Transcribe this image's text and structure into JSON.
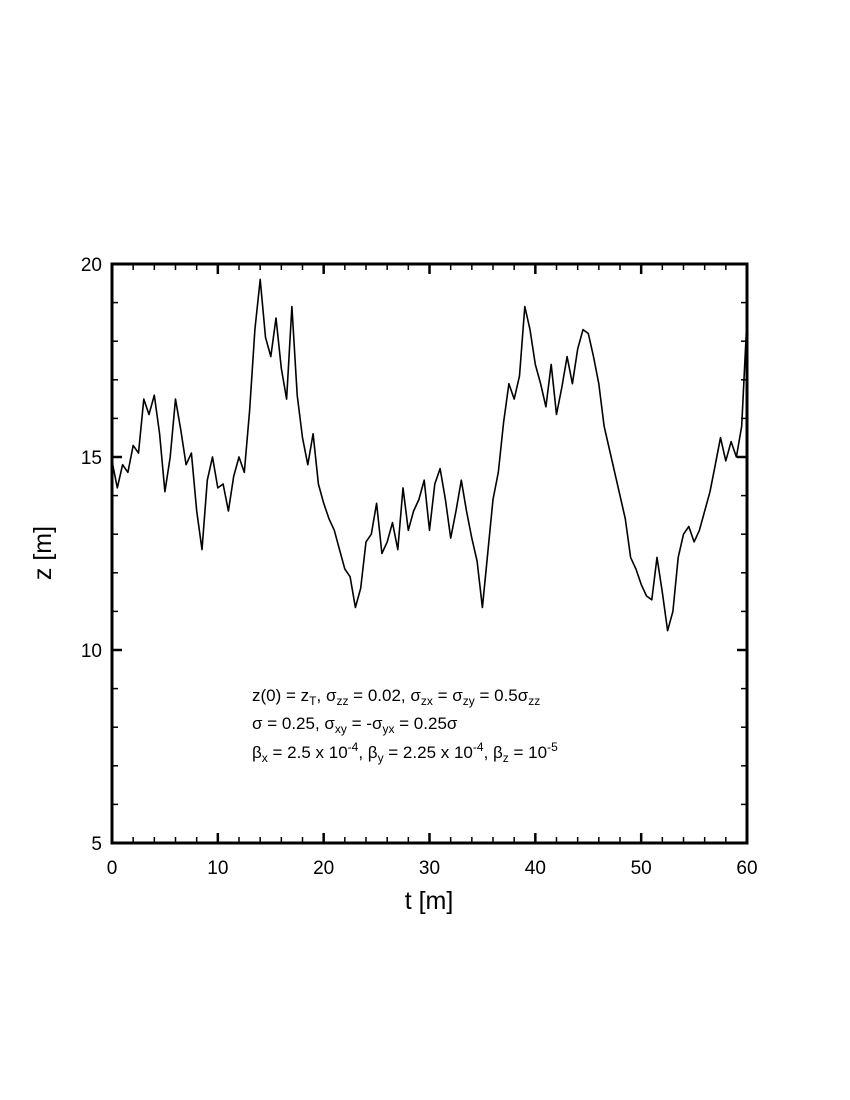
{
  "chart_data": {
    "type": "line",
    "xlabel": "t [m]",
    "ylabel": "z [m]",
    "xlim": [
      0,
      60
    ],
    "ylim": [
      5,
      20
    ],
    "x_major_ticks": [
      0,
      10,
      20,
      30,
      40,
      50,
      60
    ],
    "x_tick_labels": [
      "0",
      "10",
      "20",
      "30",
      "40",
      "50",
      "60"
    ],
    "y_major_ticks": [
      5,
      10,
      15,
      20
    ],
    "y_tick_labels": [
      "5",
      "10",
      "15",
      "20"
    ],
    "x_minor_step": 2,
    "y_minor_step": 1,
    "grid": false,
    "line_color": "#000000",
    "series": [
      {
        "x": [
          0,
          0.5,
          1.0,
          1.5,
          2.0,
          2.5,
          3.0,
          3.5,
          4.0,
          4.5,
          5.0,
          5.5,
          6.0,
          6.5,
          7.0,
          7.5,
          8.0,
          8.5,
          9.0,
          9.5,
          10.0,
          10.5,
          11.0,
          11.5,
          12.0,
          12.5,
          13.0,
          13.5,
          14.0,
          14.5,
          15.0,
          15.5,
          16.0,
          16.5,
          17.0,
          17.5,
          18.0,
          18.5,
          19.0,
          19.5,
          20.0,
          20.5,
          21.0,
          21.5,
          22.0,
          22.5,
          23.0,
          23.5,
          24.0,
          24.5,
          25.0,
          25.5,
          26.0,
          26.5,
          27.0,
          27.5,
          28.0,
          28.5,
          29.0,
          29.5,
          30.0,
          30.5,
          31.0,
          31.5,
          32.0,
          32.5,
          33.0,
          33.5,
          34.0,
          34.5,
          35.0,
          35.5,
          36.0,
          36.5,
          37.0,
          37.5,
          38.0,
          38.5,
          39.0,
          39.5,
          40.0,
          40.5,
          41.0,
          41.5,
          42.0,
          42.5,
          43.0,
          43.5,
          44.0,
          44.5,
          45.0,
          45.5,
          46.0,
          46.5,
          47.0,
          47.5,
          48.0,
          48.5,
          49.0,
          49.5,
          50.0,
          50.5,
          51.0,
          51.5,
          52.0,
          52.5,
          53.0,
          53.5,
          54.0,
          54.5,
          55.0,
          55.5,
          56.0,
          56.5,
          57.0,
          57.5,
          58.0,
          58.5,
          59.0,
          59.5,
          60.0
        ],
        "y": [
          14.9,
          14.2,
          14.8,
          14.6,
          15.3,
          15.1,
          16.5,
          16.1,
          16.6,
          15.6,
          14.1,
          15.0,
          16.5,
          15.7,
          14.8,
          15.1,
          13.6,
          12.6,
          14.4,
          15.0,
          14.2,
          14.3,
          13.6,
          14.5,
          15.0,
          14.6,
          16.2,
          18.3,
          19.6,
          18.1,
          17.6,
          18.6,
          17.3,
          16.5,
          18.9,
          16.6,
          15.5,
          14.8,
          15.6,
          14.3,
          13.8,
          13.4,
          13.1,
          12.6,
          12.1,
          11.9,
          11.1,
          11.6,
          12.8,
          13.0,
          13.8,
          12.5,
          12.8,
          13.3,
          12.6,
          14.2,
          13.1,
          13.6,
          13.9,
          14.4,
          13.1,
          14.3,
          14.7,
          13.9,
          12.9,
          13.6,
          14.4,
          13.6,
          12.9,
          12.3,
          11.1,
          12.5,
          13.9,
          14.6,
          15.9,
          16.9,
          16.5,
          17.1,
          18.9,
          18.3,
          17.4,
          16.9,
          16.3,
          17.4,
          16.1,
          16.8,
          17.6,
          16.9,
          17.8,
          18.3,
          18.2,
          17.6,
          16.9,
          15.8,
          15.2,
          14.6,
          14.0,
          13.4,
          12.4,
          12.1,
          11.7,
          11.4,
          11.3,
          12.4,
          11.5,
          10.5,
          11.0,
          12.4,
          13.0,
          13.2,
          12.8,
          13.1,
          13.6,
          14.1,
          14.8,
          15.5,
          14.9,
          15.4,
          15.0,
          15.8,
          18.6
        ]
      }
    ],
    "annotations": [
      "z(0) = z_T, σ_zz = 0.02, σ_zx = σ_zy = 0.5σ_zz",
      "σ = 0.25, σ_xy = -σ_yx = 0.25σ",
      "β_x = 2.5 x 10^-4, β_y = 2.25 x 10^-4, β_z = 10^-5"
    ]
  },
  "annotation_text": {
    "line1": {
      "a": "z(0) = z",
      "a_sub": "T",
      "b": ", σ",
      "b_sub": "zz",
      "c": " = 0.02, σ",
      "c_sub": "zx",
      "d": " = σ",
      "d_sub": "zy",
      "e": " = 0.5σ",
      "e_sub": "zz"
    },
    "line2": {
      "a": "σ = 0.25, σ",
      "a_sub": "xy",
      "b": " = -σ",
      "b_sub": "yx",
      "c": " = 0.25σ"
    },
    "line3": {
      "a": "β",
      "a_sub": "x",
      "b": " = 2.5 x 10",
      "b_sup": "-4",
      "c": ", β",
      "c_sub": "y",
      "d": " = 2.25 x 10",
      "d_sup": "-4",
      "e": ", β",
      "e_sub": "z",
      "f": " = 10",
      "f_sup": "-5"
    }
  }
}
